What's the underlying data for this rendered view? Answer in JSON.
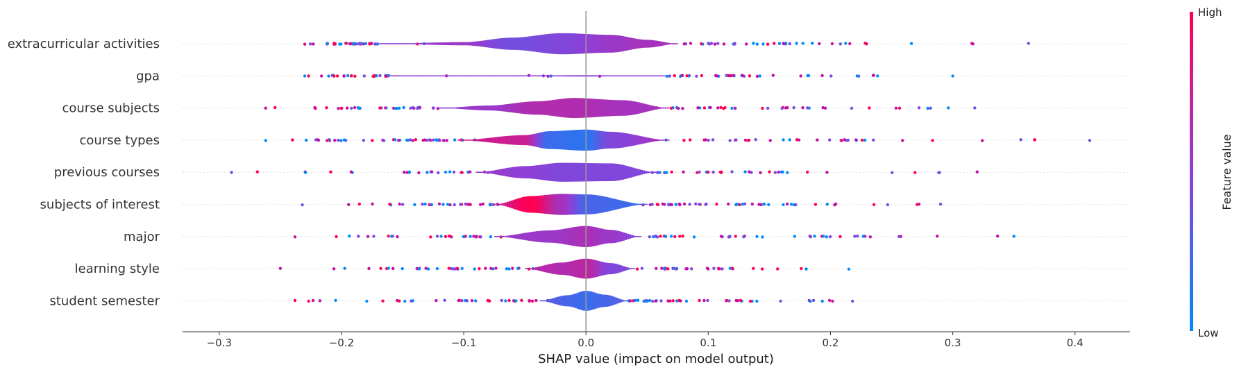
{
  "chart_data": {
    "type": "violin",
    "title": "",
    "xlabel": "SHAP value (impact on model output)",
    "ylabel": "",
    "xlim": [
      -0.33,
      0.445
    ],
    "xticks": [
      -0.3,
      -0.2,
      -0.1,
      0.0,
      0.1,
      0.2,
      0.3,
      0.4
    ],
    "xtick_labels": [
      "−0.3",
      "−0.2",
      "−0.1",
      "0.0",
      "0.1",
      "0.2",
      "0.3",
      "0.4"
    ],
    "features": [
      {
        "name": "extracurricular activities",
        "min": -0.23,
        "max": 0.362,
        "core": [
          -0.17,
          0.075
        ],
        "profile": [
          [
            -0.17,
            0.0,
            0.5
          ],
          [
            -0.1,
            0.14,
            0.55
          ],
          [
            -0.06,
            0.55,
            0.4
          ],
          [
            -0.02,
            0.95,
            0.45
          ],
          [
            0.02,
            0.8,
            0.55
          ],
          [
            0.05,
            0.35,
            0.6
          ],
          [
            0.075,
            0.0,
            0.6
          ]
        ]
      },
      {
        "name": "gpa",
        "min": -0.23,
        "max": 0.3,
        "core": [
          -0.16,
          0.065
        ],
        "profile": [
          [
            -0.16,
            0.0,
            0.5
          ],
          [
            -0.05,
            0.04,
            0.5
          ],
          [
            0.0,
            0.06,
            0.5
          ],
          [
            0.065,
            0.0,
            0.5
          ]
        ]
      },
      {
        "name": "course subjects",
        "min": -0.262,
        "max": 0.318,
        "core": [
          -0.12,
          0.068
        ],
        "profile": [
          [
            -0.12,
            0.0,
            0.5
          ],
          [
            -0.08,
            0.22,
            0.55
          ],
          [
            -0.04,
            0.6,
            0.65
          ],
          [
            -0.01,
            0.9,
            0.65
          ],
          [
            0.03,
            0.7,
            0.6
          ],
          [
            0.068,
            0.0,
            0.6
          ]
        ]
      },
      {
        "name": "course types",
        "min": -0.262,
        "max": 0.412,
        "core": [
          -0.105,
          0.068
        ],
        "profile": [
          [
            -0.105,
            0.0,
            0.8
          ],
          [
            -0.05,
            0.45,
            0.75
          ],
          [
            -0.03,
            0.8,
            0.2
          ],
          [
            0.0,
            0.95,
            0.15
          ],
          [
            0.02,
            0.75,
            0.45
          ],
          [
            0.068,
            0.0,
            0.6
          ]
        ]
      },
      {
        "name": "previous courses",
        "min": -0.29,
        "max": 0.32,
        "core": [
          -0.09,
          0.058
        ],
        "profile": [
          [
            -0.09,
            0.0,
            0.55
          ],
          [
            -0.05,
            0.55,
            0.5
          ],
          [
            -0.02,
            0.85,
            0.45
          ],
          [
            0.02,
            0.8,
            0.45
          ],
          [
            0.058,
            0.0,
            0.45
          ]
        ]
      },
      {
        "name": "subjects of interest",
        "min": -0.232,
        "max": 0.29,
        "core": [
          -0.075,
          0.05
        ],
        "profile": [
          [
            -0.075,
            0.0,
            0.75
          ],
          [
            -0.045,
            0.75,
            1.0
          ],
          [
            -0.02,
            0.95,
            0.6
          ],
          [
            0.0,
            0.9,
            0.25
          ],
          [
            0.05,
            0.0,
            0.2
          ]
        ]
      },
      {
        "name": "major",
        "min": -0.238,
        "max": 0.35,
        "core": [
          -0.075,
          0.045
        ],
        "profile": [
          [
            -0.075,
            0.0,
            0.55
          ],
          [
            -0.03,
            0.55,
            0.55
          ],
          [
            0.0,
            0.95,
            0.62
          ],
          [
            0.02,
            0.6,
            0.55
          ],
          [
            0.045,
            0.0,
            0.45
          ]
        ]
      },
      {
        "name": "learning style",
        "min": -0.25,
        "max": 0.215,
        "core": [
          -0.05,
          0.04
        ],
        "profile": [
          [
            -0.05,
            0.0,
            0.7
          ],
          [
            -0.02,
            0.55,
            0.65
          ],
          [
            0.0,
            0.9,
            0.7
          ],
          [
            0.02,
            0.5,
            0.45
          ],
          [
            0.04,
            0.0,
            0.45
          ]
        ]
      },
      {
        "name": "student semester",
        "min": -0.238,
        "max": 0.218,
        "core": [
          -0.038,
          0.035
        ],
        "profile": [
          [
            -0.038,
            0.0,
            0.35
          ],
          [
            -0.015,
            0.5,
            0.25
          ],
          [
            0.0,
            0.9,
            0.2
          ],
          [
            0.015,
            0.55,
            0.25
          ],
          [
            0.035,
            0.0,
            0.3
          ]
        ]
      }
    ],
    "colorbar": {
      "title": "Feature value",
      "high_label": "High",
      "low_label": "Low",
      "low_color": "#008bfb",
      "high_color": "#ff0052"
    }
  }
}
